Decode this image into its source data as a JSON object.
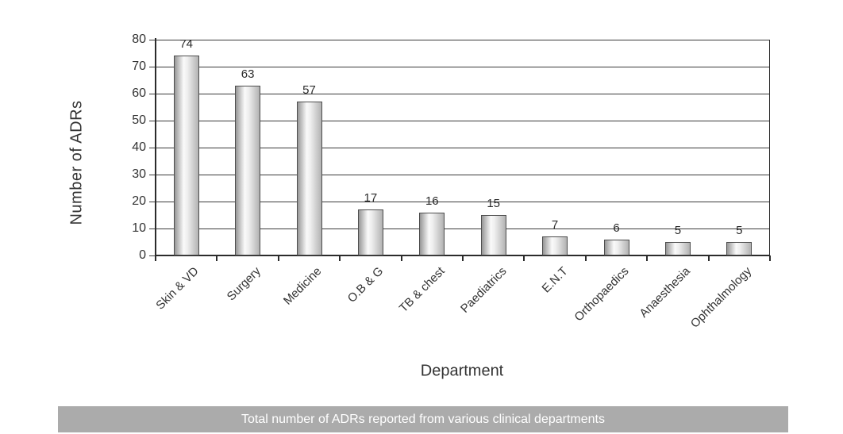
{
  "chart_data": {
    "type": "bar",
    "categories": [
      "Skin & VD",
      "Surgery",
      "Medicine",
      "O.B & G",
      "TB & chest",
      "Paediatrics",
      "E.N.T",
      "Orthopaedics",
      "Anaesthesia",
      "Ophthalmology"
    ],
    "values": [
      74,
      63,
      57,
      17,
      16,
      15,
      7,
      6,
      5,
      5
    ],
    "title": "",
    "xlabel": "Department",
    "ylabel": "Number of ADRs",
    "ylim": [
      0,
      80
    ],
    "ytick_step": 10,
    "yticks": [
      0,
      10,
      20,
      30,
      40,
      50,
      60,
      70,
      80
    ],
    "grid": true,
    "bar_labels_shown": true,
    "legend": "none",
    "category_label_rotation_deg": 45
  },
  "caption": {
    "text": "Total number of ADRs reported from various clinical departments"
  },
  "colors": {
    "background": "#ffffff",
    "banner_bg": "#ababab",
    "banner_text": "#ffffff",
    "grid_line": "#3a3a3a",
    "axis_line": "#2b2b2b",
    "bar_outline": "#4d4d4d",
    "bar_light": "#fafafa",
    "bar_dark": "#969696",
    "text": "#333333"
  }
}
